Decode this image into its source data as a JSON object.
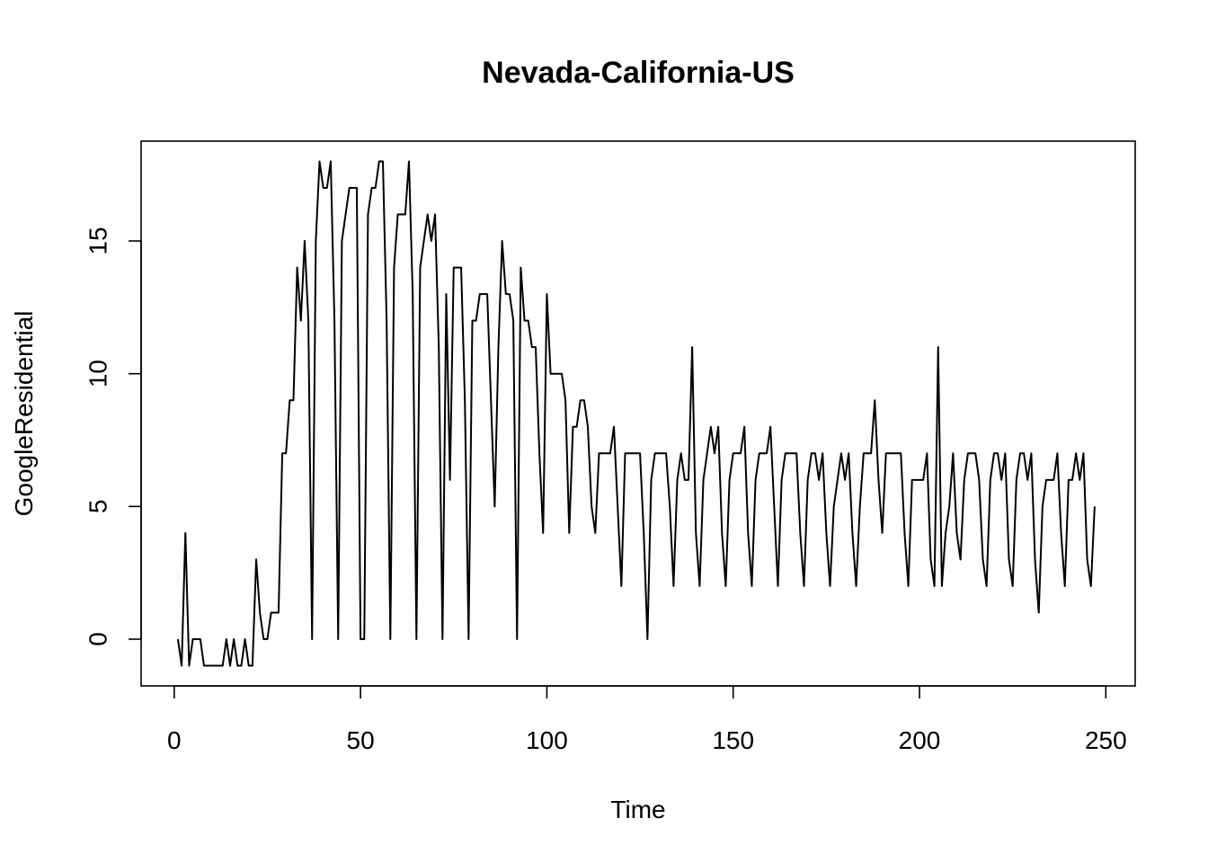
{
  "chart_data": {
    "type": "line",
    "title": "Nevada-California-US",
    "xlabel": "Time",
    "ylabel": "GoogleResidential",
    "xlim": [
      1,
      248
    ],
    "ylim": [
      -1,
      18
    ],
    "xticks": [
      0,
      50,
      100,
      150,
      200,
      250
    ],
    "yticks": [
      0,
      5,
      10,
      15
    ],
    "grid": false,
    "legend": "none",
    "line_color": "#000000",
    "x_start": 1,
    "series": [
      {
        "values": [
          0,
          -1,
          4,
          -1,
          0,
          0,
          0,
          -1,
          -1,
          -1,
          -1,
          -1,
          -1,
          0,
          -1,
          0,
          -1,
          -1,
          0,
          -1,
          -1,
          3,
          1,
          0,
          0,
          1,
          1,
          1,
          7,
          7,
          9,
          9,
          14,
          12,
          15,
          12,
          0,
          15,
          18,
          17,
          17,
          18,
          12,
          0,
          15,
          16,
          17,
          17,
          17,
          0,
          0,
          16,
          17,
          17,
          18,
          18,
          12,
          0,
          14,
          16,
          16,
          16,
          18,
          13,
          0,
          14,
          15,
          16,
          15,
          16,
          11,
          0,
          13,
          6,
          14,
          14,
          14,
          9,
          0,
          12,
          12,
          13,
          13,
          13,
          9,
          5,
          11,
          15,
          13,
          13,
          12,
          0,
          14,
          12,
          12,
          11,
          11,
          7,
          4,
          13,
          10,
          10,
          10,
          10,
          9,
          4,
          8,
          8,
          9,
          9,
          8,
          5,
          4,
          7,
          7,
          7,
          7,
          8,
          5,
          2,
          7,
          7,
          7,
          7,
          7,
          4,
          0,
          6,
          7,
          7,
          7,
          7,
          5,
          2,
          6,
          7,
          6,
          6,
          11,
          4,
          2,
          6,
          7,
          8,
          7,
          8,
          4,
          2,
          6,
          7,
          7,
          7,
          8,
          4,
          2,
          6,
          7,
          7,
          7,
          8,
          5,
          2,
          6,
          7,
          7,
          7,
          7,
          4,
          2,
          6,
          7,
          7,
          6,
          7,
          4,
          2,
          5,
          6,
          7,
          6,
          7,
          4,
          2,
          5,
          7,
          7,
          7,
          9,
          6,
          4,
          7,
          7,
          7,
          7,
          7,
          4,
          2,
          6,
          6,
          6,
          6,
          7,
          3,
          2,
          11,
          2,
          4,
          5,
          7,
          4,
          3,
          6,
          7,
          7,
          7,
          6,
          3,
          2,
          6,
          7,
          7,
          6,
          7,
          3,
          2,
          6,
          7,
          7,
          6,
          7,
          3,
          1,
          5,
          6,
          6,
          6,
          7,
          4,
          2,
          6,
          6,
          7,
          6,
          7,
          3,
          2,
          5
        ]
      }
    ]
  }
}
